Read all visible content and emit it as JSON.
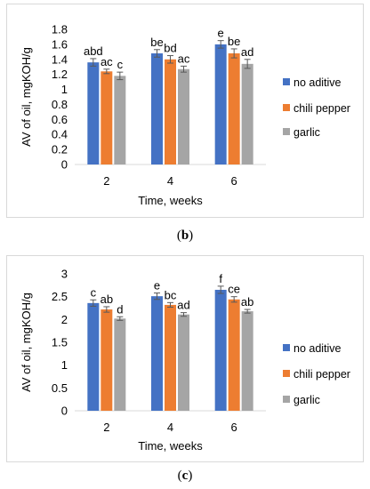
{
  "captions": {
    "b": "b",
    "c": "c"
  },
  "chart_data": [
    {
      "id": "b",
      "type": "bar",
      "categories": [
        "2",
        "4",
        "6"
      ],
      "xlabel": "Time, weeks",
      "ylabel": "AV of oil, mgKOH/g",
      "ylim": [
        0,
        1.8
      ],
      "yticks": [
        0,
        0.2,
        0.4,
        0.6,
        0.8,
        1,
        1.2,
        1.4,
        1.6,
        1.8
      ],
      "ytick_labels": [
        "0",
        "0.2",
        "0.4",
        "0.6",
        "0.8",
        "1",
        "1.2",
        "1.4",
        "1.6",
        "1.8"
      ],
      "legend_position": "right",
      "series": [
        {
          "name": "no aditive",
          "color": "#4472C4",
          "values": [
            1.36,
            1.48,
            1.6
          ],
          "errors": [
            0.05,
            0.05,
            0.05
          ],
          "labels": [
            "abd",
            "be",
            "e"
          ]
        },
        {
          "name": "chili pepper",
          "color": "#ED7D31",
          "values": [
            1.24,
            1.4,
            1.48
          ],
          "errors": [
            0.03,
            0.05,
            0.06
          ],
          "labels": [
            "ac",
            "bd",
            "be"
          ]
        },
        {
          "name": "garlic",
          "color": "#A5A5A5",
          "values": [
            1.18,
            1.27,
            1.34
          ],
          "errors": [
            0.05,
            0.04,
            0.06
          ],
          "labels": [
            "c",
            "ac",
            "ad"
          ]
        }
      ]
    },
    {
      "id": "c",
      "type": "bar",
      "categories": [
        "2",
        "4",
        "6"
      ],
      "xlabel": "Time, weeks",
      "ylabel": "AV of oil, mgKOH/g",
      "ylim": [
        0,
        3
      ],
      "yticks": [
        0,
        0.5,
        1,
        1.5,
        2,
        2.5,
        3
      ],
      "ytick_labels": [
        "0",
        "0.5",
        "1",
        "1.5",
        "2",
        "2.5",
        "3"
      ],
      "legend_position": "right",
      "series": [
        {
          "name": "no aditive",
          "color": "#4472C4",
          "values": [
            2.36,
            2.51,
            2.65
          ],
          "errors": [
            0.07,
            0.07,
            0.08
          ],
          "labels": [
            "c",
            "e",
            "f"
          ]
        },
        {
          "name": "chili pepper",
          "color": "#ED7D31",
          "values": [
            2.22,
            2.32,
            2.44
          ],
          "errors": [
            0.06,
            0.05,
            0.06
          ],
          "labels": [
            "ab",
            "bc",
            "ce"
          ]
        },
        {
          "name": "garlic",
          "color": "#A5A5A5",
          "values": [
            2.02,
            2.11,
            2.18
          ],
          "errors": [
            0.04,
            0.04,
            0.04
          ],
          "labels": [
            "d",
            "ad",
            "ab"
          ]
        }
      ]
    }
  ]
}
